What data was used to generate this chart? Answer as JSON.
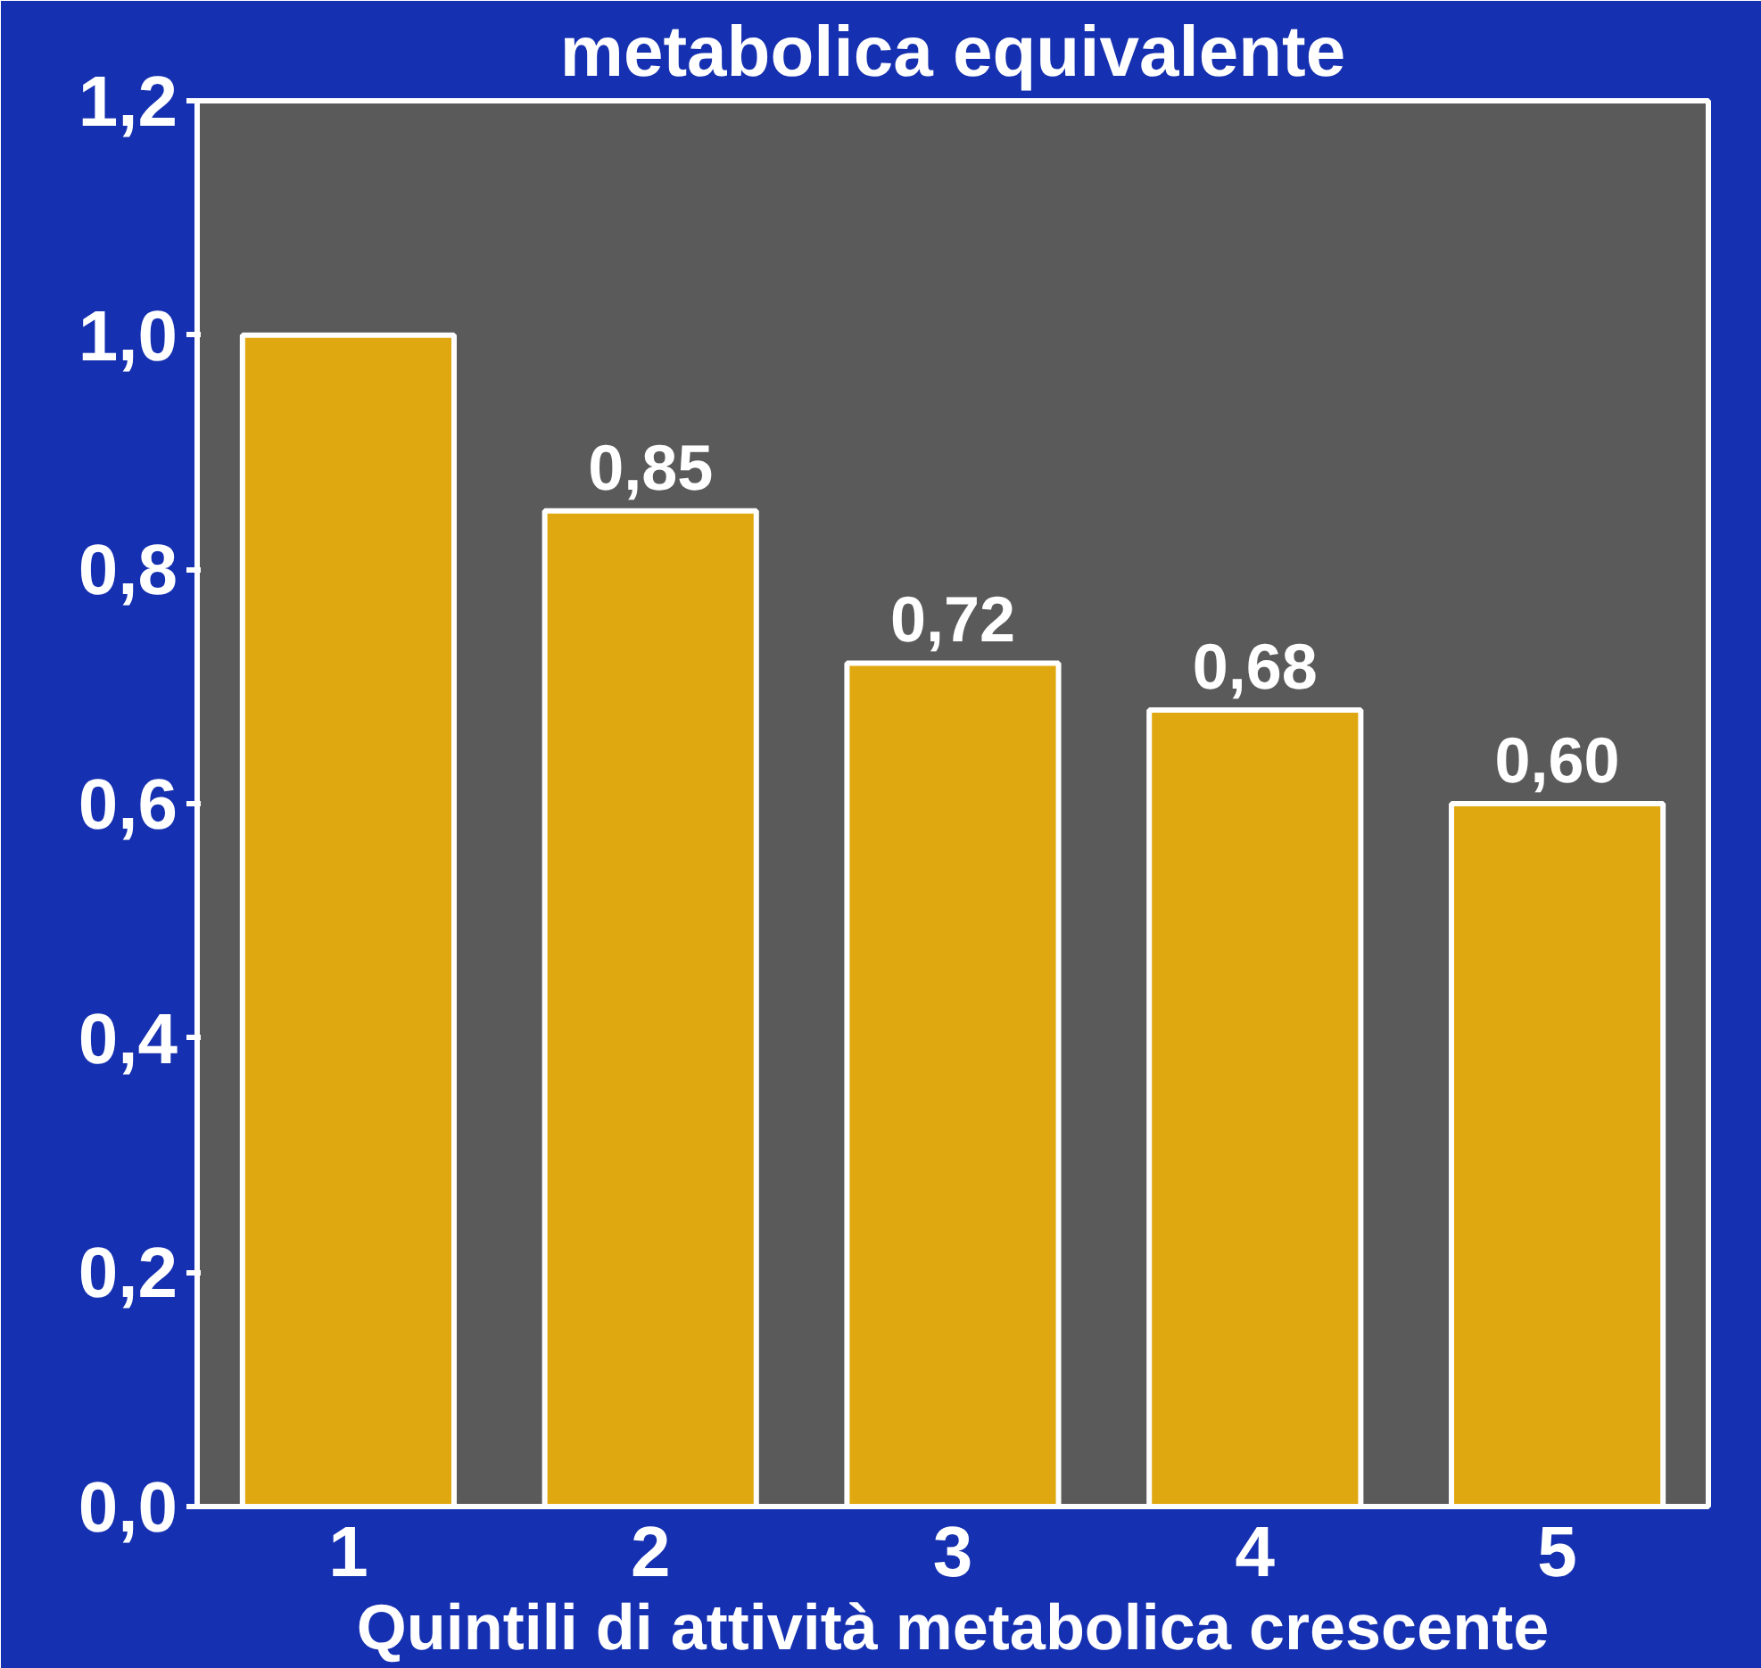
{
  "chart_data": {
    "type": "bar",
    "title": "metabolica equivalente",
    "xlabel": "Quintili di attività metabolica crescente",
    "categories": [
      "1",
      "2",
      "3",
      "4",
      "5"
    ],
    "values": [
      1.0,
      0.85,
      0.72,
      0.68,
      0.6
    ],
    "value_labels": [
      null,
      "0,85",
      "0,72",
      "0,68",
      "0,60"
    ],
    "color": "#e0a810",
    "ylim": [
      0,
      1.2
    ],
    "yticks": [
      {
        "value": 0,
        "label": "0,0"
      },
      {
        "value": 0.2,
        "label": "0,2"
      },
      {
        "value": 0.4,
        "label": "0,4"
      },
      {
        "value": 0.6,
        "label": "0,6"
      },
      {
        "value": 0.8,
        "label": "0,8"
      },
      {
        "value": 1.0,
        "label": "1,0"
      },
      {
        "value": 1.2,
        "label": "1,2"
      }
    ],
    "grid": false
  }
}
